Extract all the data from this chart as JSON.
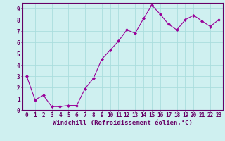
{
  "x": [
    0,
    1,
    2,
    3,
    4,
    5,
    6,
    7,
    8,
    9,
    10,
    11,
    12,
    13,
    14,
    15,
    16,
    17,
    18,
    19,
    20,
    21,
    22,
    23
  ],
  "y": [
    3.0,
    0.9,
    1.3,
    0.3,
    0.3,
    0.4,
    0.4,
    1.9,
    2.8,
    4.5,
    5.3,
    6.1,
    7.1,
    6.8,
    8.1,
    9.3,
    8.5,
    7.6,
    7.1,
    8.0,
    8.4,
    7.9,
    7.4,
    8.0
  ],
  "line_color": "#990099",
  "marker": "D",
  "marker_size": 2.0,
  "bg_color": "#cff0f0",
  "grid_color": "#aadddd",
  "axis_color": "#660066",
  "xlabel": "Windchill (Refroidissement éolien,°C)",
  "xlabel_color": "#660066",
  "xlim": [
    -0.5,
    23.5
  ],
  "ylim": [
    0,
    9.5
  ],
  "xticks": [
    0,
    1,
    2,
    3,
    4,
    5,
    6,
    7,
    8,
    9,
    10,
    11,
    12,
    13,
    14,
    15,
    16,
    17,
    18,
    19,
    20,
    21,
    22,
    23
  ],
  "yticks": [
    0,
    1,
    2,
    3,
    4,
    5,
    6,
    7,
    8,
    9
  ],
  "tick_label_color": "#660066",
  "tick_label_fontsize": 5.5,
  "xlabel_fontsize": 6.5
}
